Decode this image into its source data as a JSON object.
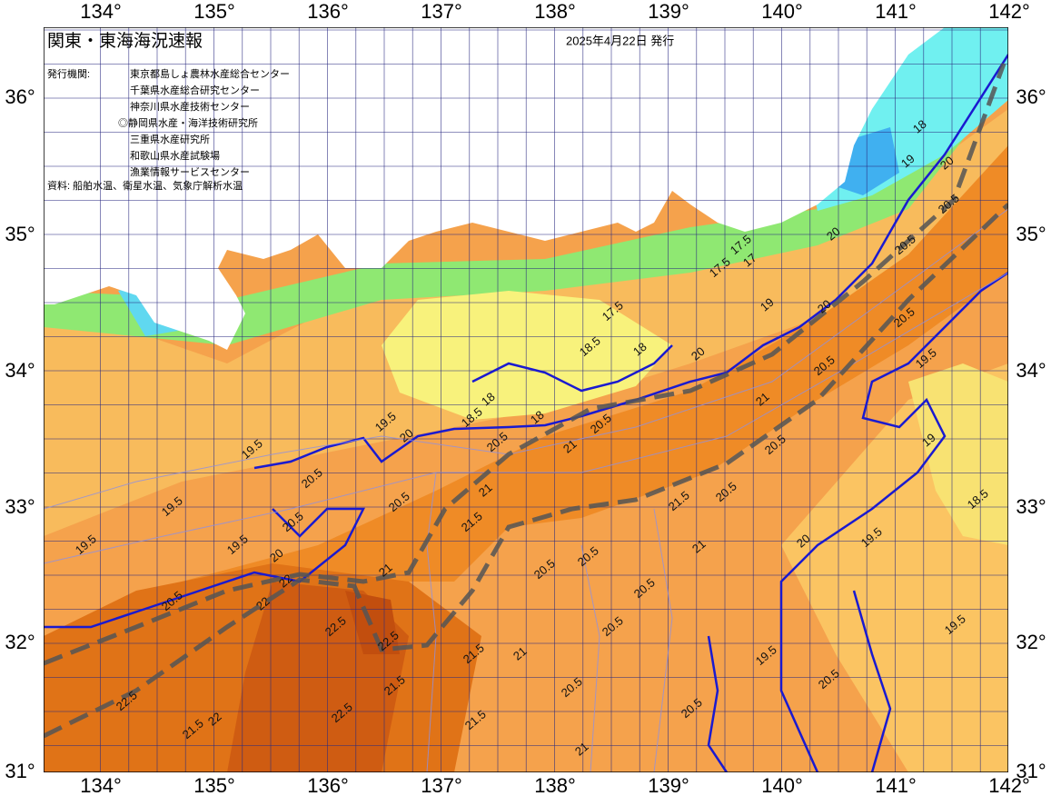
{
  "header": {
    "title": "関東・東海海況速報",
    "date": "2025年4月22日 発行",
    "issuer_label": "発行機関:",
    "issuers": [
      "東京都島しょ農林水産総合センター",
      "千葉県水産総合研究センター",
      "神奈川県水産技術センター",
      "◎静岡県水産・海洋技術研究所",
      "三重県水産研究所",
      "和歌山県水産試験場",
      "漁業情報サービスセンター"
    ],
    "source": "資料: 船舶水温、衛星水温、気象庁解析水温"
  },
  "axes": {
    "lon_labels": [
      "134°",
      "135°",
      "136°",
      "137°",
      "138°",
      "139°",
      "140°",
      "141°",
      "142°"
    ],
    "lat_labels": [
      "36°",
      "35°",
      "34°",
      "33°",
      "32°",
      "31°"
    ]
  },
  "contour_labels": [
    "17.5",
    "17.5",
    "17",
    "17.5",
    "18.5",
    "18",
    "18",
    "18.5",
    "18",
    "19.5",
    "20",
    "20.5",
    "21",
    "20.5",
    "19.5",
    "20.5",
    "19.5",
    "19.5",
    "19.5",
    "20",
    "20.5",
    "20.5",
    "21",
    "21",
    "21.5",
    "20.5",
    "22",
    "22.5",
    "22.5",
    "22.5",
    "21.5",
    "21.5",
    "21",
    "21.5",
    "20.5",
    "20.5",
    "20.5",
    "20.5",
    "20.5",
    "21.5",
    "20.5",
    "21",
    "20.5",
    "20.5",
    "21",
    "19.5",
    "19.5",
    "20",
    "20.5",
    "20.5",
    "19.5",
    "19",
    "18.5",
    "19.5",
    "20.5",
    "20",
    "20.5",
    "22.5",
    "21.5",
    "22",
    "21",
    "22",
    "18",
    "19",
    "20",
    "20.5",
    "19",
    "20",
    "20"
  ]
}
